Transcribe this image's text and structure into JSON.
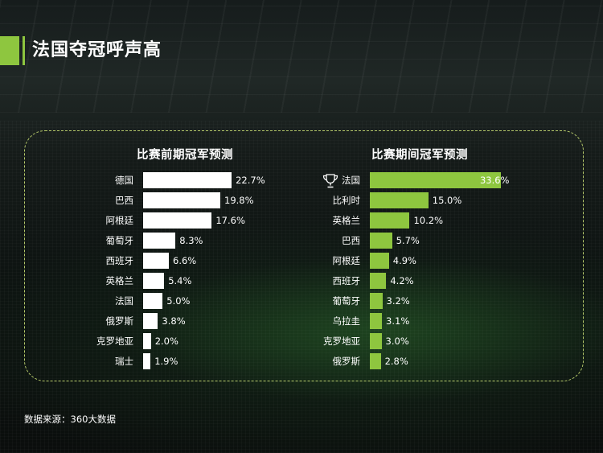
{
  "page": {
    "title": "法国夺冠呼声高",
    "source": "数据来源：360大数据",
    "accent_color": "#8ec63f"
  },
  "chart_data": [
    {
      "type": "bar",
      "orientation": "horizontal",
      "title": "比赛前期冠军预测",
      "categories": [
        "德国",
        "巴西",
        "阿根廷",
        "葡萄牙",
        "西班牙",
        "英格兰",
        "法国",
        "俄罗斯",
        "克罗地亚",
        "瑞士"
      ],
      "values": [
        22.7,
        19.8,
        17.6,
        8.3,
        6.6,
        5.4,
        5.0,
        3.8,
        2.0,
        1.9
      ],
      "value_labels": [
        "22.7%",
        "19.8%",
        "17.6%",
        "8.3%",
        "6.6%",
        "5.4%",
        "5.0%",
        "3.8%",
        "2.0%",
        "1.9%"
      ],
      "unit": "%",
      "bar_color": "#ffffff"
    },
    {
      "type": "bar",
      "orientation": "horizontal",
      "title": "比赛期间冠军预测",
      "categories": [
        "法国",
        "比利时",
        "英格兰",
        "巴西",
        "阿根廷",
        "西班牙",
        "葡萄牙",
        "乌拉圭",
        "克罗地亚",
        "俄罗斯"
      ],
      "values": [
        33.6,
        15.0,
        10.2,
        5.7,
        4.9,
        4.2,
        3.2,
        3.1,
        3.0,
        2.8
      ],
      "value_labels": [
        "33.6%",
        "15.0%",
        "10.2%",
        "5.7%",
        "4.9%",
        "4.2%",
        "3.2%",
        "3.1%",
        "3.0%",
        "2.8%"
      ],
      "unit": "%",
      "bar_color": "#8ec63f",
      "icons": [
        "trophy-icon"
      ]
    }
  ]
}
